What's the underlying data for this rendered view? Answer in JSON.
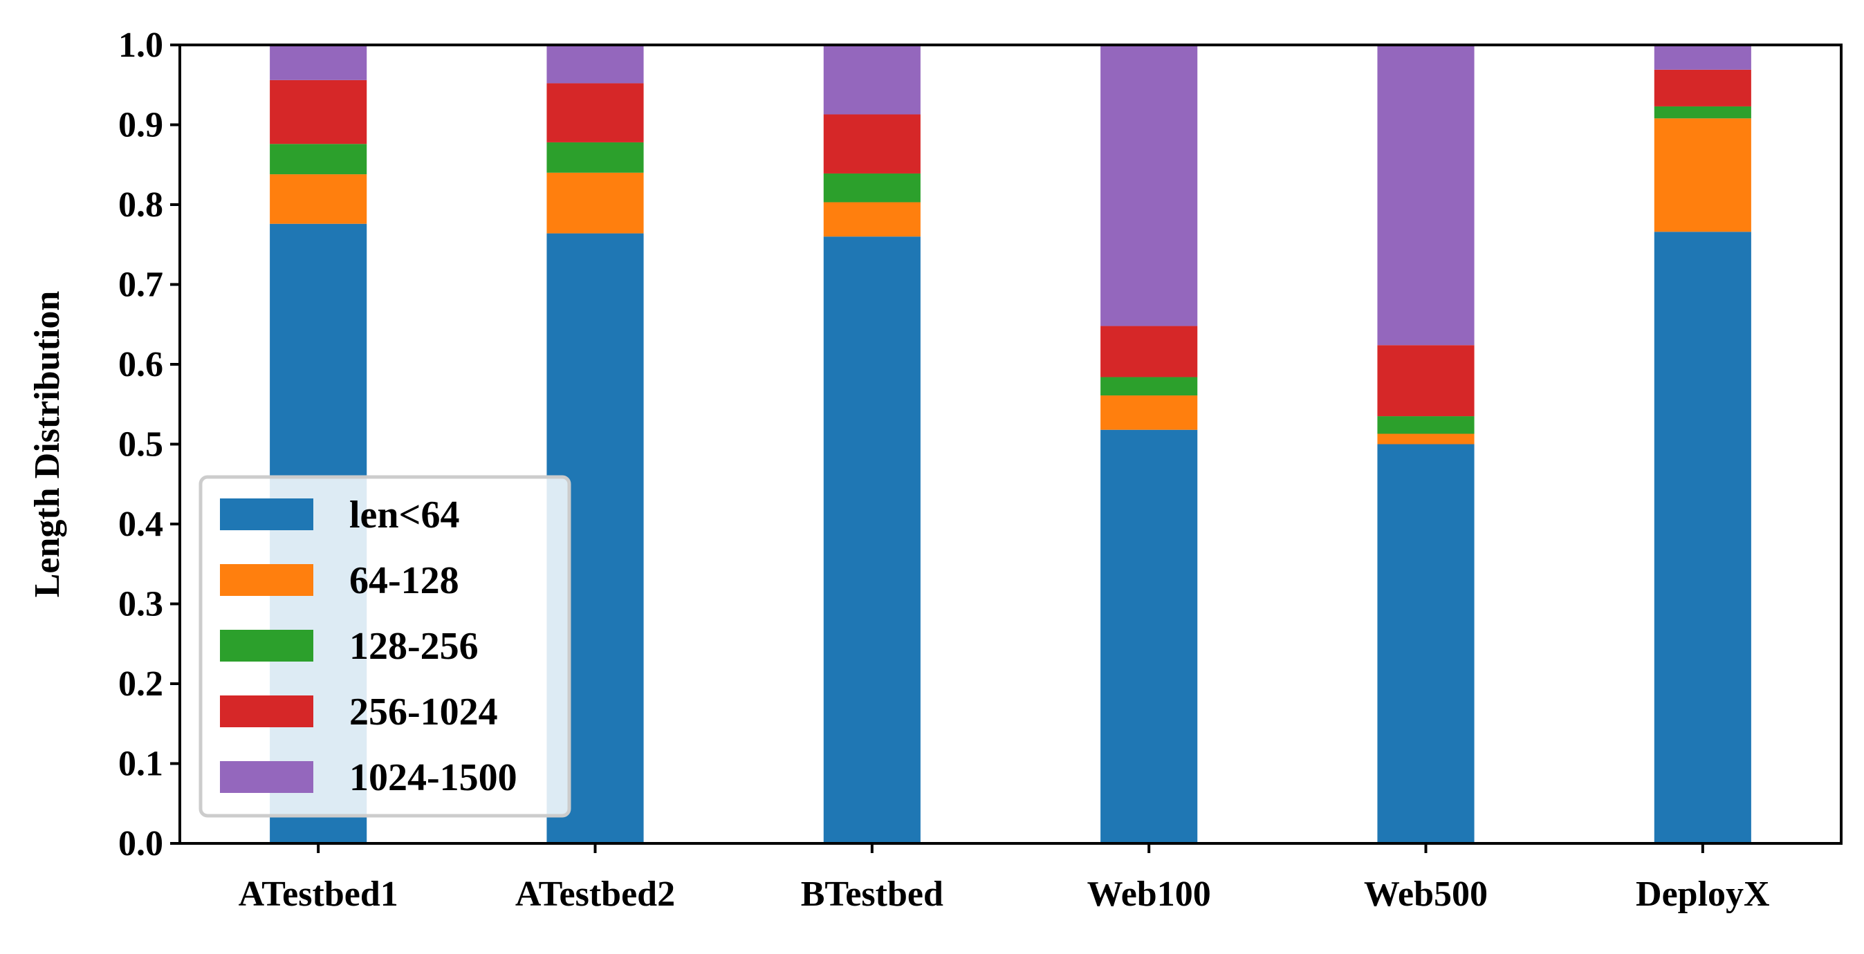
{
  "chart_data": {
    "type": "bar",
    "stacked": true,
    "title": "",
    "xlabel": "",
    "ylabel": "Length Distribution",
    "ylim": [
      0.0,
      1.0
    ],
    "yticks": [
      "0.0",
      "0.1",
      "0.2",
      "0.3",
      "0.4",
      "0.5",
      "0.6",
      "0.7",
      "0.8",
      "0.9",
      "1.0"
    ],
    "grid": false,
    "legend_position": "bottom-left",
    "categories": [
      "ATestbed1",
      "ATestbed2",
      "BTestbed",
      "Web100",
      "Web500",
      "DeployX"
    ],
    "series": [
      {
        "name": "len<64",
        "color": "#1f77b4",
        "values": [
          0.776,
          0.764,
          0.76,
          0.518,
          0.5,
          0.766
        ]
      },
      {
        "name": "64-128",
        "color": "#ff7f0e",
        "values": [
          0.062,
          0.076,
          0.043,
          0.043,
          0.013,
          0.142
        ]
      },
      {
        "name": "128-256",
        "color": "#2ca02c",
        "values": [
          0.038,
          0.038,
          0.036,
          0.023,
          0.022,
          0.015
        ]
      },
      {
        "name": "256-1024",
        "color": "#d62728",
        "values": [
          0.08,
          0.074,
          0.074,
          0.064,
          0.089,
          0.046
        ]
      },
      {
        "name": "1024-1500",
        "color": "#9467bd",
        "values": [
          0.044,
          0.048,
          0.087,
          0.352,
          0.376,
          0.031
        ]
      }
    ]
  }
}
